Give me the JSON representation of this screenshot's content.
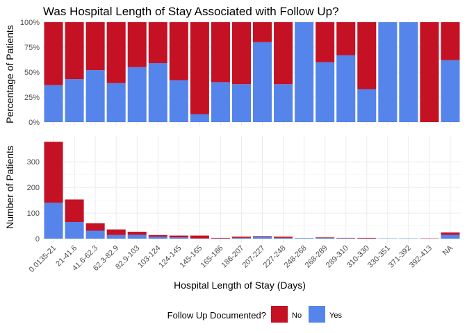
{
  "chart_data": {
    "type": "bar",
    "title": "Was Hospital Length of Stay Associated with Follow Up?",
    "xlabel": "Hospital Length of Stay (Days)",
    "categories": [
      "0.0135-21",
      "21-41.6",
      "41.6-62.3",
      "62.3-82.9",
      "82.9-103",
      "103-124",
      "124-145",
      "145-165",
      "165-186",
      "186-207",
      "207-227",
      "227-248",
      "248-268",
      "268-289",
      "289-310",
      "310-330",
      "330-351",
      "371-392",
      "392-413",
      "NA"
    ],
    "colors": {
      "No": "#c41124",
      "Yes": "#5584ea"
    },
    "legend": {
      "title": "Follow Up Documented?",
      "entries": [
        "No",
        "Yes"
      ],
      "position": "bottom"
    },
    "panels": [
      {
        "name": "percentage",
        "ylabel": "Percentage of Patients",
        "ylim": [
          0,
          1
        ],
        "yticks": [
          "0%",
          "25%",
          "50%",
          "75%",
          "100%"
        ],
        "stacked": true,
        "series": [
          {
            "name": "Yes",
            "values": [
              0.37,
              0.43,
              0.52,
              0.39,
              0.55,
              0.59,
              0.42,
              0.08,
              0.4,
              0.38,
              0.8,
              0.38,
              1.0,
              0.6,
              0.67,
              0.33,
              1.0,
              1.0,
              0.0,
              0.62
            ]
          },
          {
            "name": "No",
            "values": [
              0.63,
              0.57,
              0.48,
              0.61,
              0.45,
              0.41,
              0.58,
              0.92,
              0.6,
              0.62,
              0.2,
              0.62,
              0.0,
              0.4,
              0.33,
              0.67,
              0.0,
              0.0,
              1.0,
              0.38
            ]
          }
        ]
      },
      {
        "name": "count",
        "ylabel": "Number of Patients",
        "ylim": [
          0,
          390
        ],
        "yticks": [
          "0",
          "100",
          "200",
          "300"
        ],
        "stacked": true,
        "series": [
          {
            "name": "Yes",
            "values": [
              140,
              65,
              31,
              14,
              15,
              8,
              5,
              1,
              1,
              3,
              8,
              3,
              2,
              3,
              2,
              1,
              1,
              1,
              0,
              15
            ]
          },
          {
            "name": "No",
            "values": [
              238,
              88,
              29,
              22,
              12,
              6,
              7,
              11,
              2,
              5,
              2,
              5,
              0,
              2,
              1,
              2,
              0,
              0,
              1,
              9
            ]
          }
        ]
      }
    ]
  }
}
